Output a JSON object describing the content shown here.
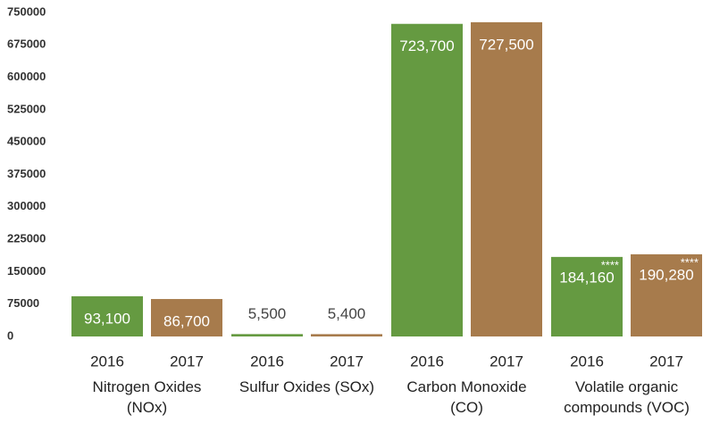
{
  "chart_data": {
    "type": "bar",
    "categories": [
      "Nitrogen Oxides (NOx)",
      "Sulfur Oxides (SOx)",
      "Carbon Monoxide (CO)",
      "Volatile organic compounds (VOC)"
    ],
    "series": [
      {
        "name": "2016",
        "color": "#659a41",
        "values": [
          93100,
          5500,
          723700,
          184160
        ],
        "value_labels": [
          "93,100",
          "5,500",
          "723,700",
          "184,160"
        ],
        "notes": [
          null,
          null,
          null,
          "****"
        ]
      },
      {
        "name": "2017",
        "color": "#a77b4c",
        "values": [
          86700,
          5400,
          727500,
          190280
        ],
        "value_labels": [
          "86,700",
          "5,400",
          "727,500",
          "190,280"
        ],
        "notes": [
          null,
          null,
          null,
          "****"
        ]
      }
    ],
    "ylim": [
      0,
      750000
    ],
    "yticks": [
      0,
      75000,
      150000,
      225000,
      300000,
      375000,
      450000,
      525000,
      600000,
      675000,
      750000
    ]
  }
}
